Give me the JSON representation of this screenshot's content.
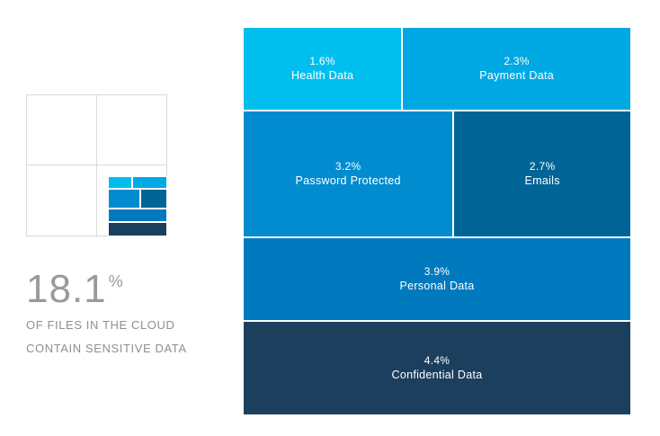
{
  "stat": {
    "number": "18.1",
    "unit": "%",
    "line1": "OF FILES IN THE CLOUD",
    "line2": "CONTAIN SENSITIVE DATA"
  },
  "chart_data": {
    "type": "treemap",
    "title": "",
    "total_percent": 18.1,
    "items": [
      {
        "label": "Health Data",
        "value": 1.6,
        "value_label": "1.6%",
        "color": "#00bfef"
      },
      {
        "label": "Payment Data",
        "value": 2.3,
        "value_label": "2.3%",
        "color": "#00a9e4"
      },
      {
        "label": "Password Protected",
        "value": 3.2,
        "value_label": "3.2%",
        "color": "#008ccf"
      },
      {
        "label": "Emails",
        "value": 2.7,
        "value_label": "2.7%",
        "color": "#006596"
      },
      {
        "label": "Personal Data",
        "value": 3.9,
        "value_label": "3.9%",
        "color": "#0079be"
      },
      {
        "label": "Confidential Data",
        "value": 4.4,
        "value_label": "4.4%",
        "color": "#1c3f5d"
      }
    ],
    "rows": [
      [
        "Health Data",
        "Payment Data"
      ],
      [
        "Password Protected",
        "Emails"
      ],
      [
        "Personal Data"
      ],
      [
        "Confidential Data"
      ]
    ]
  }
}
